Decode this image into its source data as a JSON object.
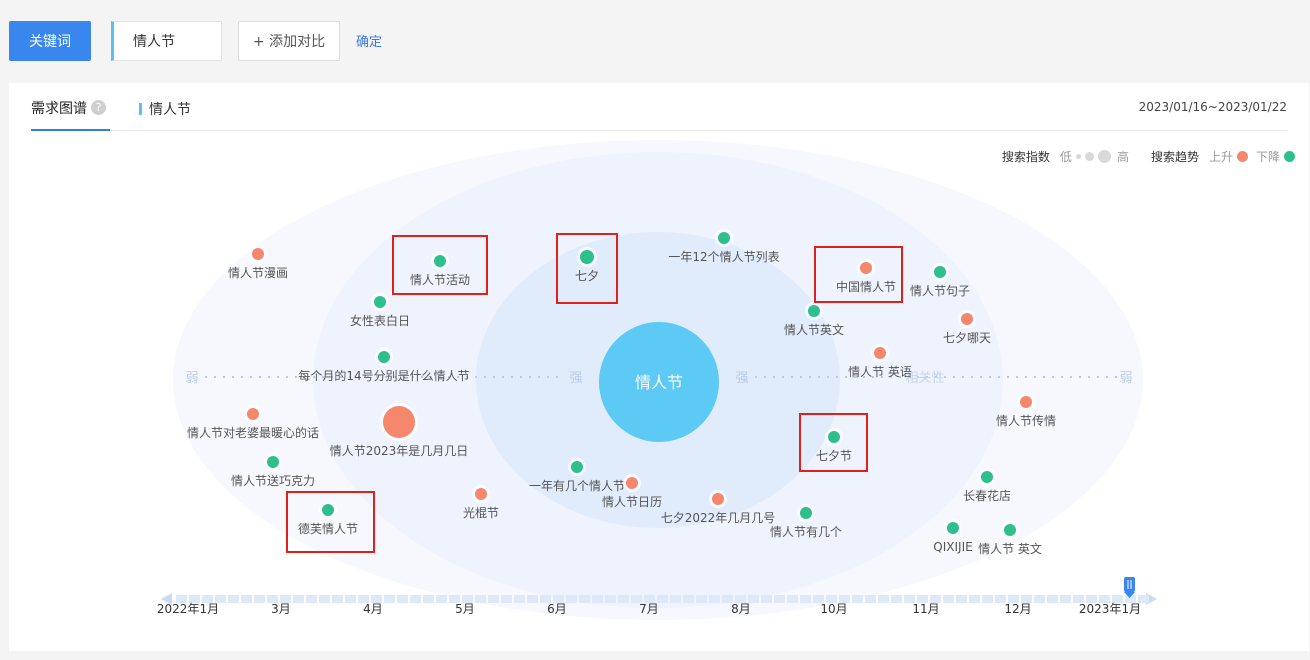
{
  "topbar": {
    "keyword_button": "关键词",
    "keyword_value": "情人节",
    "add_compare": "+ 添加对比",
    "confirm": "确定"
  },
  "panel": {
    "tab_main": "需求图谱",
    "help_icon": "?",
    "tab_keyword": "情人节",
    "date_range": "2023/01/16~2023/01/22",
    "legend": {
      "search_index_label": "搜索指数",
      "low": "低",
      "high": "高",
      "trend_label": "搜索趋势",
      "up": "上升",
      "down": "下降",
      "up_color": "#f5876c",
      "down_color": "#2fbf8e"
    }
  },
  "graph": {
    "center": "情人节",
    "axis_labels": {
      "weak_left": "弱",
      "strong_left": "强",
      "strong_right": "强",
      "relevance": "相关性",
      "weak_right": "弱"
    },
    "nodes": [
      {
        "label": "情人节漫画",
        "trend": "up"
      },
      {
        "label": "情人节活动",
        "trend": "down",
        "highlight": true
      },
      {
        "label": "七夕",
        "trend": "down",
        "highlight": true
      },
      {
        "label": "一年12个情人节列表",
        "trend": "down"
      },
      {
        "label": "中国情人节",
        "trend": "up",
        "highlight": true
      },
      {
        "label": "情人节句子",
        "trend": "down"
      },
      {
        "label": "女性表白日",
        "trend": "down"
      },
      {
        "label": "情人节英文",
        "trend": "down"
      },
      {
        "label": "七夕哪天",
        "trend": "up"
      },
      {
        "label": "每个月的14号分别是什么情人节",
        "trend": "down"
      },
      {
        "label": "情人节 英语",
        "trend": "up"
      },
      {
        "label": "情人节对老婆最暖心的话",
        "trend": "up"
      },
      {
        "label": "情人节2023年是几月几日",
        "trend": "up"
      },
      {
        "label": "情人节传情",
        "trend": "up"
      },
      {
        "label": "七夕节",
        "trend": "down",
        "highlight": true
      },
      {
        "label": "情人节送巧克力",
        "trend": "down"
      },
      {
        "label": "一年有几个情人节",
        "trend": "down"
      },
      {
        "label": "情人节日历",
        "trend": "up"
      },
      {
        "label": "长春花店",
        "trend": "down"
      },
      {
        "label": "光棍节",
        "trend": "up"
      },
      {
        "label": "七夕2022年几月几号",
        "trend": "up"
      },
      {
        "label": "情人节有几个",
        "trend": "down"
      },
      {
        "label": "德芙情人节",
        "trend": "down",
        "highlight": true
      },
      {
        "label": "QIXIJIE",
        "trend": "down"
      },
      {
        "label": "情人节 英文",
        "trend": "down"
      }
    ]
  },
  "timeline": {
    "labels": [
      "2022年1月",
      "3月",
      "4月",
      "5月",
      "6月",
      "7月",
      "8月",
      "10月",
      "11月",
      "12月",
      "2023年1月"
    ]
  }
}
